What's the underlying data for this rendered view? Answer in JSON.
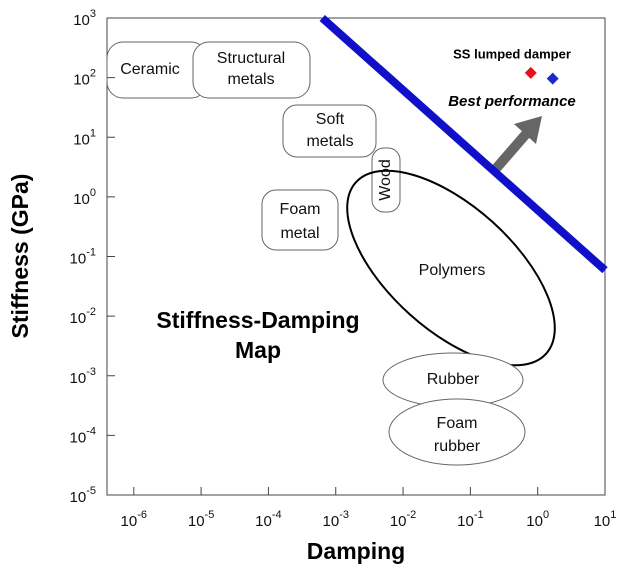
{
  "chart_data": {
    "type": "scatter",
    "title": [
      "Stiffness-Damping",
      "Map"
    ],
    "xlabel": "Damping",
    "ylabel": "Stiffness (GPa)",
    "log_x": true,
    "log_y": true,
    "xlim": [
      4e-07,
      10
    ],
    "ylim": [
      1e-05,
      1000
    ],
    "xticks": [
      {
        "value": 1e-06,
        "label": "10",
        "sup": "-6"
      },
      {
        "value": 1e-05,
        "label": "10",
        "sup": "-5"
      },
      {
        "value": 0.0001,
        "label": "10",
        "sup": "-4"
      },
      {
        "value": 0.001,
        "label": "10",
        "sup": "-3"
      },
      {
        "value": 0.01,
        "label": "10",
        "sup": "-2"
      },
      {
        "value": 0.1,
        "label": "10",
        "sup": "-1"
      },
      {
        "value": 1,
        "label": "10",
        "sup": "0"
      },
      {
        "value": 10,
        "label": "10",
        "sup": "1"
      }
    ],
    "yticks": [
      {
        "value": 1e-05,
        "label": "10",
        "sup": "-5"
      },
      {
        "value": 0.0001,
        "label": "10",
        "sup": "-4"
      },
      {
        "value": 0.001,
        "label": "10",
        "sup": "-3"
      },
      {
        "value": 0.01,
        "label": "10",
        "sup": "-2"
      },
      {
        "value": 0.1,
        "label": "10",
        "sup": "-1"
      },
      {
        "value": 1,
        "label": "10",
        "sup": "0"
      },
      {
        "value": 10,
        "label": "10",
        "sup": "1"
      },
      {
        "value": 100,
        "label": "10",
        "sup": "2"
      },
      {
        "value": 1000,
        "label": "10",
        "sup": "3"
      }
    ],
    "series": [
      {
        "name": "SS lumped damper",
        "x": [
          0.79,
          1.67
        ],
        "y": [
          120,
          96
        ],
        "colors": [
          "#e8101c",
          "#1a2bc8"
        ]
      }
    ],
    "boundary": {
      "label": "Best performance",
      "x": [
        0.00063,
        10
      ],
      "y": [
        1000,
        0.059
      ],
      "color": "#1010c8"
    },
    "regions": [
      {
        "label": [
          "Ceramic"
        ]
      },
      {
        "label": [
          "Structural",
          "metals"
        ]
      },
      {
        "label": [
          "Soft",
          "metals"
        ]
      },
      {
        "label": [
          "Wood"
        ]
      },
      {
        "label": [
          "Foam",
          "metal"
        ]
      },
      {
        "label": [
          "Polymers"
        ]
      },
      {
        "label": [
          "Rubber"
        ]
      },
      {
        "label": [
          "Foam",
          "rubber"
        ]
      }
    ]
  }
}
